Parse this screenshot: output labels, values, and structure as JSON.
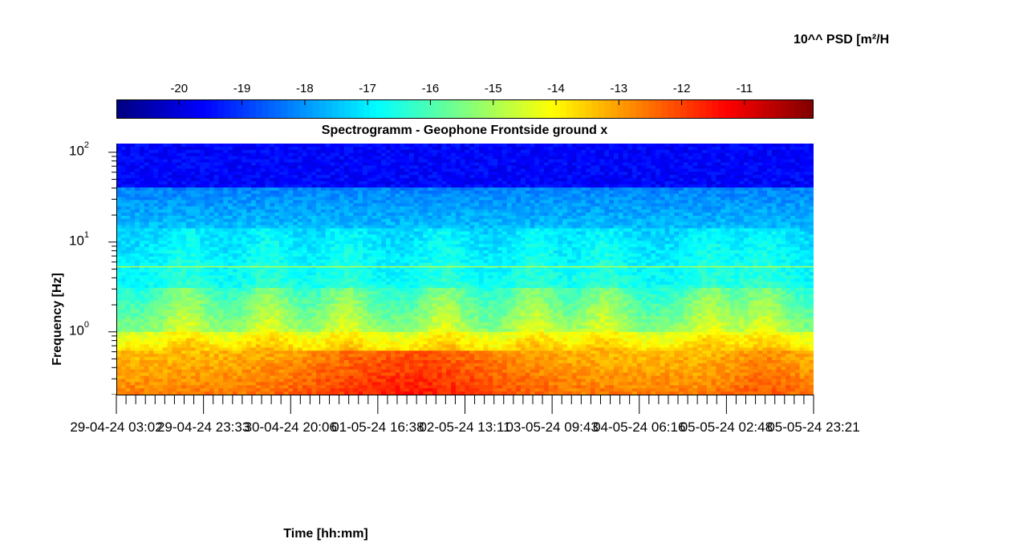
{
  "chart_data": {
    "type": "heatmap",
    "title": "Spectrogramm - Geophone Frontside ground x",
    "xlabel": "Time [hh:mm]",
    "ylabel": "Frequency [Hz]",
    "yscale": "log",
    "ylim": [
      0.2,
      125
    ],
    "y_ticks": [
      {
        "base": "10",
        "exp": "2",
        "value": 100
      },
      {
        "base": "10",
        "exp": "1",
        "value": 10
      },
      {
        "base": "10",
        "exp": "0",
        "value": 1
      }
    ],
    "x_ticks": [
      "29-04-24  03:02",
      "29-04-24  23:33",
      "30-04-24  20:06",
      "01-05-24  16:38",
      "02-05-24  13:11",
      "03-05-24  09:43",
      "04-05-24  06:16",
      "05-05-24  02:48",
      "05-05-24  23:21"
    ],
    "colorbar": {
      "label": "10^^ PSD [m²/H",
      "colormap": "jet",
      "ticks": [
        "-20",
        "-19",
        "-18",
        "-17",
        "-16",
        "-15",
        "-14",
        "-13",
        "-12",
        "-11"
      ],
      "range": [
        -21.0,
        -9.9
      ]
    }
  }
}
